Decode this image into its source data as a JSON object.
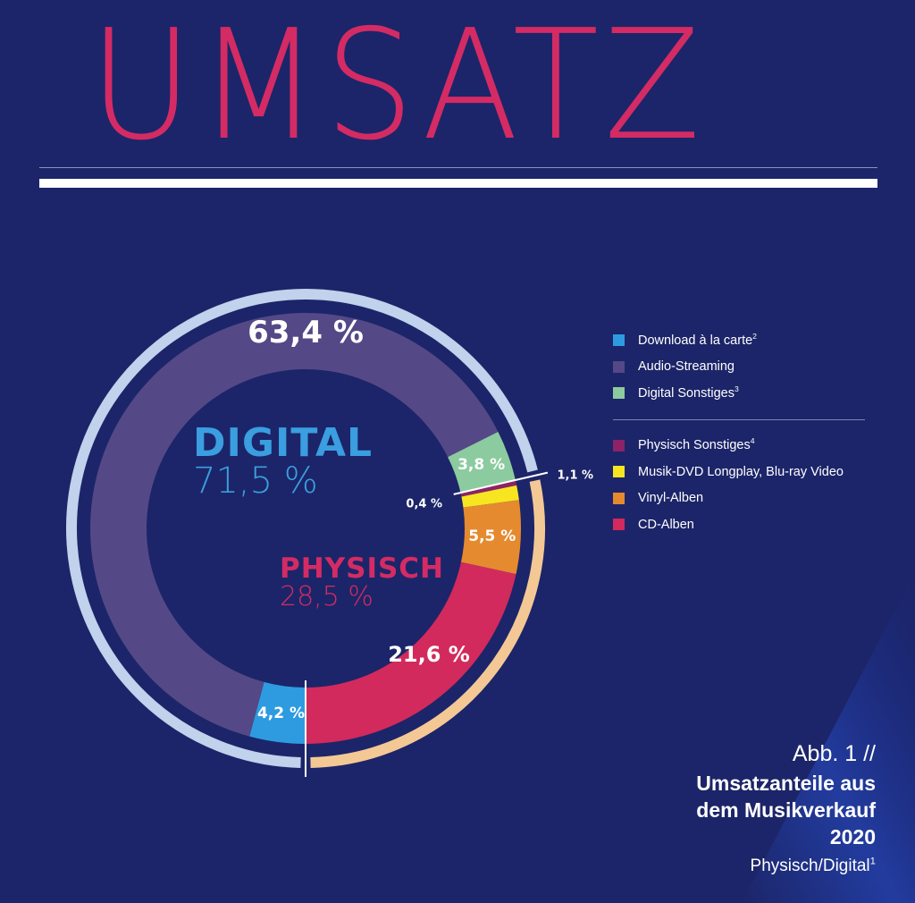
{
  "page": {
    "title": "UMSATZ"
  },
  "colors": {
    "background": "#1c2569",
    "title": "#d42b64",
    "digital_ring": "#c0d2ec",
    "physical_ring": "#f3c895"
  },
  "chart_data": {
    "type": "pie",
    "style": "donut",
    "slices": [
      {
        "name": "Download à la carte",
        "note": "2",
        "value": 4.2,
        "label": "4,2 %",
        "color": "#2e9be0",
        "group": "digital"
      },
      {
        "name": "Audio-Streaming",
        "note": "",
        "value": 63.4,
        "label": "63,4 %",
        "color": "#544986",
        "group": "digital"
      },
      {
        "name": "Digital Sonstiges",
        "note": "3",
        "value": 3.8,
        "label": "3,8 %",
        "color": "#8ccba0",
        "group": "digital"
      },
      {
        "name": "Physisch Sonstiges",
        "note": "4",
        "value": 0.4,
        "label": "0,4 %",
        "color": "#8e2266",
        "group": "physisch"
      },
      {
        "name": "Musik-DVD Longplay, Blu-ray Video",
        "note": "",
        "value": 1.1,
        "label": "1,1 %",
        "color": "#f8e521",
        "group": "physisch"
      },
      {
        "name": "Vinyl-Alben",
        "note": "",
        "value": 5.5,
        "label": "5,5 %",
        "color": "#e58a2f",
        "group": "physisch"
      },
      {
        "name": "CD-Alben",
        "note": "",
        "value": 21.6,
        "label": "21,6 %",
        "color": "#d22a5c",
        "group": "physisch"
      }
    ],
    "groups": [
      {
        "key": "digital",
        "name": "DIGITAL",
        "value": 71.5,
        "label": "71,5 %",
        "color": "#3a9ee0"
      },
      {
        "key": "physisch",
        "name": "PHYSISCH",
        "value": 28.5,
        "label": "28,5 %",
        "color": "#d42b64"
      }
    ],
    "legend": {
      "position": "right",
      "digital_items": [
        {
          "label": "Download à la carte",
          "note": "2",
          "color": "#2e9be0"
        },
        {
          "label": "Audio-Streaming",
          "note": "",
          "color": "#544986"
        },
        {
          "label": "Digital Sonstiges",
          "note": "3",
          "color": "#8ccba0"
        }
      ],
      "physical_items": [
        {
          "label": "Physisch Sonstiges",
          "note": "4",
          "color": "#8e2266"
        },
        {
          "label": "Musik-DVD Longplay, Blu-ray Video",
          "note": "",
          "color": "#f8e521"
        },
        {
          "label": "Vinyl-Alben",
          "note": "",
          "color": "#e58a2f"
        },
        {
          "label": "CD-Alben",
          "note": "",
          "color": "#d22a5c"
        }
      ]
    }
  },
  "caption": {
    "fig": "Abb. 1 //",
    "title_line1": "Umsatzanteile aus",
    "title_line2": "dem Musikverkauf",
    "year": "2020",
    "subtitle": "Physisch/Digital",
    "subtitle_note": "1"
  }
}
